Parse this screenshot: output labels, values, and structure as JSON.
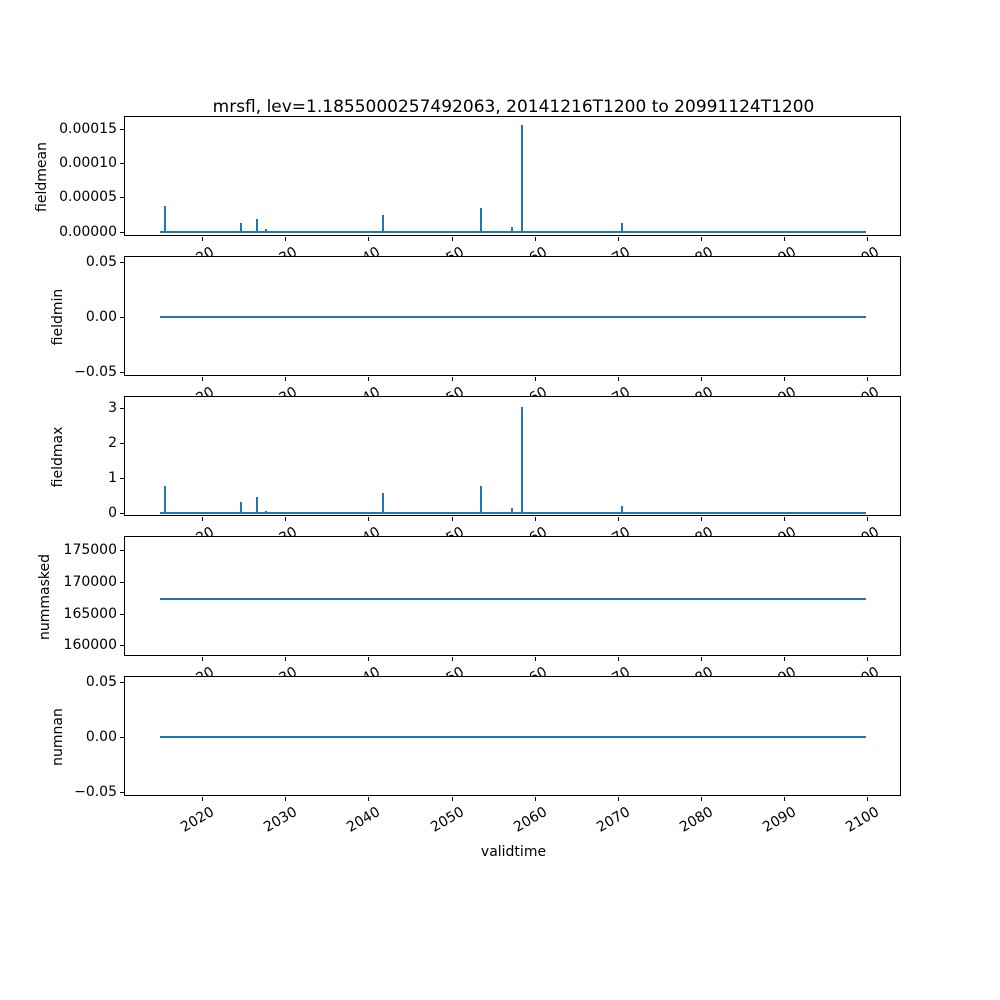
{
  "chart_data": {
    "type": "line",
    "title": "mrsfl, lev=1.1855000257492063, 20141216T1200 to 20991124T1200",
    "xlabel": "validtime",
    "line_color": "#1f77b4",
    "grid": false,
    "legend": "none",
    "x_range": [
      2010.7,
      2104.2
    ],
    "x_ticks": [
      {
        "v": 2020,
        "label": "2020"
      },
      {
        "v": 2030,
        "label": "2030"
      },
      {
        "v": 2040,
        "label": "2040"
      },
      {
        "v": 2050,
        "label": "2050"
      },
      {
        "v": 2060,
        "label": "2060"
      },
      {
        "v": 2070,
        "label": "2070"
      },
      {
        "v": 2080,
        "label": "2080"
      },
      {
        "v": 2090,
        "label": "2090"
      },
      {
        "v": 2100,
        "label": "2100"
      }
    ],
    "series_x_start": 2014.96,
    "series_x_end": 2099.9,
    "subplots": [
      {
        "ylabel": "fieldmean",
        "y_range": [
          -8e-06,
          0.0001675
        ],
        "baseline": 0,
        "y_ticks": [
          {
            "v": 0.0,
            "label": "0.00000"
          },
          {
            "v": 5e-05,
            "label": "0.00005"
          },
          {
            "v": 0.0001,
            "label": "0.00010"
          },
          {
            "v": 0.00015,
            "label": "0.00015"
          }
        ],
        "spikes": [
          {
            "x": 2015.5,
            "y": 3.8e-05
          },
          {
            "x": 2024.6,
            "y": 1.3e-05
          },
          {
            "x": 2026.6,
            "y": 1.9e-05
          },
          {
            "x": 2027.7,
            "y": 3e-06
          },
          {
            "x": 2041.7,
            "y": 2.4e-05
          },
          {
            "x": 2053.5,
            "y": 3.4e-05
          },
          {
            "x": 2057.3,
            "y": 7e-06
          },
          {
            "x": 2058.5,
            "y": 0.000156
          },
          {
            "x": 2070.5,
            "y": 1.2e-05
          }
        ]
      },
      {
        "ylabel": "fieldmin",
        "y_range": [
          -0.055,
          0.055
        ],
        "baseline": 0,
        "y_ticks": [
          {
            "v": -0.05,
            "label": "−0.05"
          },
          {
            "v": 0.0,
            "label": "0.00"
          },
          {
            "v": 0.05,
            "label": "0.05"
          }
        ],
        "spikes": []
      },
      {
        "ylabel": "fieldmax",
        "y_range": [
          -0.125,
          3.325
        ],
        "baseline": 0,
        "y_ticks": [
          {
            "v": 0,
            "label": "0"
          },
          {
            "v": 1,
            "label": "1"
          },
          {
            "v": 2,
            "label": "2"
          },
          {
            "v": 3,
            "label": "3"
          }
        ],
        "spikes": [
          {
            "x": 2015.5,
            "y": 0.78
          },
          {
            "x": 2024.6,
            "y": 0.32
          },
          {
            "x": 2026.6,
            "y": 0.46
          },
          {
            "x": 2027.7,
            "y": 0.05
          },
          {
            "x": 2041.7,
            "y": 0.56
          },
          {
            "x": 2053.5,
            "y": 0.78
          },
          {
            "x": 2057.3,
            "y": 0.13
          },
          {
            "x": 2058.5,
            "y": 3.05
          },
          {
            "x": 2070.5,
            "y": 0.2
          }
        ]
      },
      {
        "ylabel": "nummasked",
        "y_range": [
          158150,
          177100
        ],
        "baseline": 167250,
        "y_ticks": [
          {
            "v": 160000,
            "label": "160000"
          },
          {
            "v": 165000,
            "label": "165000"
          },
          {
            "v": 170000,
            "label": "170000"
          },
          {
            "v": 175000,
            "label": "175000"
          }
        ],
        "spikes": []
      },
      {
        "ylabel": "numnan",
        "y_range": [
          -0.055,
          0.055
        ],
        "baseline": 0,
        "y_ticks": [
          {
            "v": -0.05,
            "label": "−0.05"
          },
          {
            "v": 0.0,
            "label": "0.00"
          },
          {
            "v": 0.05,
            "label": "0.05"
          }
        ],
        "spikes": []
      }
    ]
  }
}
